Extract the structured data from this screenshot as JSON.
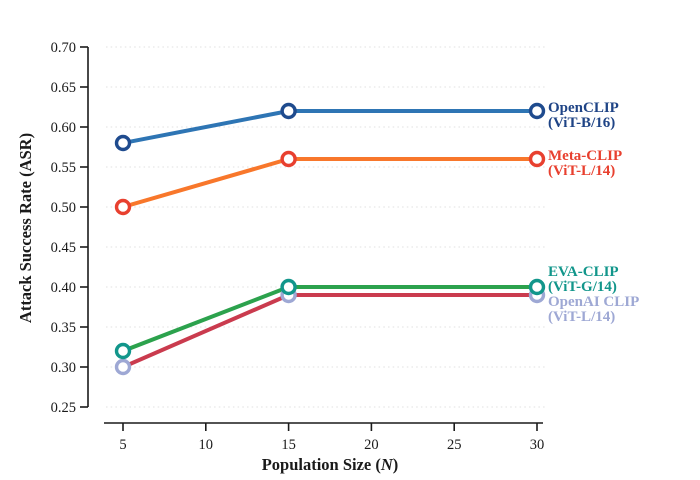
{
  "chart_data": {
    "type": "line",
    "title": "",
    "xlabel_parts": {
      "prefix": "Population Size (",
      "italic": "N",
      "suffix": ")"
    },
    "ylabel": "Attack Success Rate (ASR)",
    "x": [
      5,
      15,
      30
    ],
    "x_tick_labels": [
      "5",
      "10",
      "15",
      "20",
      "25",
      "30"
    ],
    "x_tick_values": [
      5,
      10,
      15,
      20,
      25,
      30
    ],
    "y_tick_labels": [
      "0.70",
      "0.65",
      "0.60",
      "0.55",
      "0.50",
      "0.45",
      "0.40",
      "0.35",
      "0.30",
      "0.25"
    ],
    "y_tick_values": [
      0.7,
      0.65,
      0.6,
      0.55,
      0.5,
      0.45,
      0.4,
      0.35,
      0.3,
      0.25
    ],
    "ylim": [
      0.25,
      0.7
    ],
    "xlim": [
      5,
      30
    ],
    "grid": "horizontal dotted",
    "legend_position": "right of last data point",
    "series": [
      {
        "name": "OpenCLIP",
        "variant": "(ViT-B/16)",
        "values": [
          0.58,
          0.62,
          0.62
        ],
        "line_color": "#2e75b4",
        "marker_color": "#1f4b8e",
        "label_color": "#1f4486"
      },
      {
        "name": "Meta-CLIP",
        "variant": "(ViT-L/14)",
        "values": [
          0.5,
          0.56,
          0.56
        ],
        "line_color": "#f8772b",
        "marker_color": "#e8402f",
        "label_color": "#e8402f"
      },
      {
        "name": "EVA-CLIP",
        "variant": "(ViT-G/14)",
        "values": [
          0.32,
          0.4,
          0.4
        ],
        "line_color": "#2ca24d",
        "marker_color": "#12968b",
        "label_color": "#12968b"
      },
      {
        "name": "OpenAI CLIP",
        "variant": "(ViT-L/14)",
        "values": [
          0.3,
          0.39,
          0.39
        ],
        "line_color": "#ca3b4e",
        "marker_color": "#9ea8d4",
        "label_color": "#9ea8d4"
      }
    ],
    "colors": {
      "axis": "#1a1a1a",
      "grid": "#e0e0e0",
      "background": "#ffffff",
      "tick_text": "#1a1a1a"
    }
  }
}
